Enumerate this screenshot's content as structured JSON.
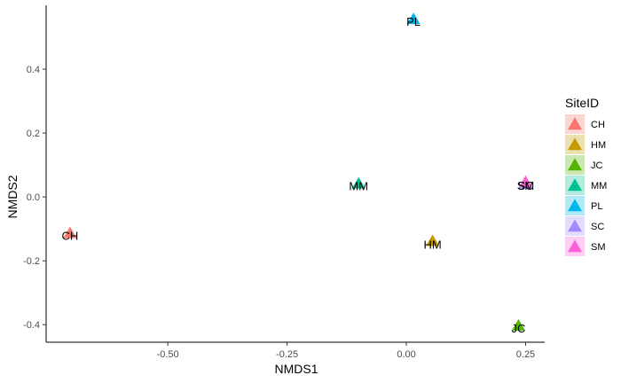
{
  "chart_data": {
    "type": "scatter",
    "xlabel": "NMDS1",
    "ylabel": "NMDS2",
    "xlim": [
      -0.755,
      0.29
    ],
    "ylim": [
      -0.455,
      0.6
    ],
    "x_ticks": [
      {
        "value": -0.5,
        "label": "-0.50"
      },
      {
        "value": -0.25,
        "label": "-0.25"
      },
      {
        "value": 0.0,
        "label": "0.00"
      },
      {
        "value": 0.25,
        "label": "0.25"
      }
    ],
    "y_ticks": [
      {
        "value": -0.4,
        "label": "-0.4"
      },
      {
        "value": -0.2,
        "label": "-0.2"
      },
      {
        "value": 0.0,
        "label": "0.0"
      },
      {
        "value": 0.2,
        "label": "0.2"
      },
      {
        "value": 0.4,
        "label": "0.4"
      }
    ],
    "grid": false,
    "legend": {
      "title": "SiteID",
      "placement": "right",
      "marker": "triangle"
    },
    "series": [
      {
        "name": "CH",
        "color": "#F8766D",
        "x": -0.705,
        "y": -0.115
      },
      {
        "name": "HM",
        "color": "#C49A00",
        "x": 0.055,
        "y": -0.14
      },
      {
        "name": "JC",
        "color": "#53B400",
        "x": 0.235,
        "y": -0.405
      },
      {
        "name": "MM",
        "color": "#00C094",
        "x": -0.1,
        "y": 0.04
      },
      {
        "name": "PL",
        "color": "#00B6EB",
        "x": 0.015,
        "y": 0.555
      },
      {
        "name": "SC",
        "color": "#A58AFF",
        "x": 0.25,
        "y": 0.04
      },
      {
        "name": "SM",
        "color": "#FB61D7",
        "x": 0.25,
        "y": 0.045
      }
    ],
    "point_labels": [
      {
        "text": "CH",
        "x": -0.705,
        "y": -0.12
      },
      {
        "text": "HM",
        "x": 0.055,
        "y": -0.148
      },
      {
        "text": "JC",
        "x": 0.235,
        "y": -0.41
      },
      {
        "text": "MM",
        "x": -0.1,
        "y": 0.035
      },
      {
        "text": "PL",
        "x": 0.015,
        "y": 0.55
      },
      {
        "text": "SC",
        "x": 0.25,
        "y": 0.037
      },
      {
        "text": "SM",
        "x": 0.25,
        "y": 0.037
      }
    ]
  }
}
